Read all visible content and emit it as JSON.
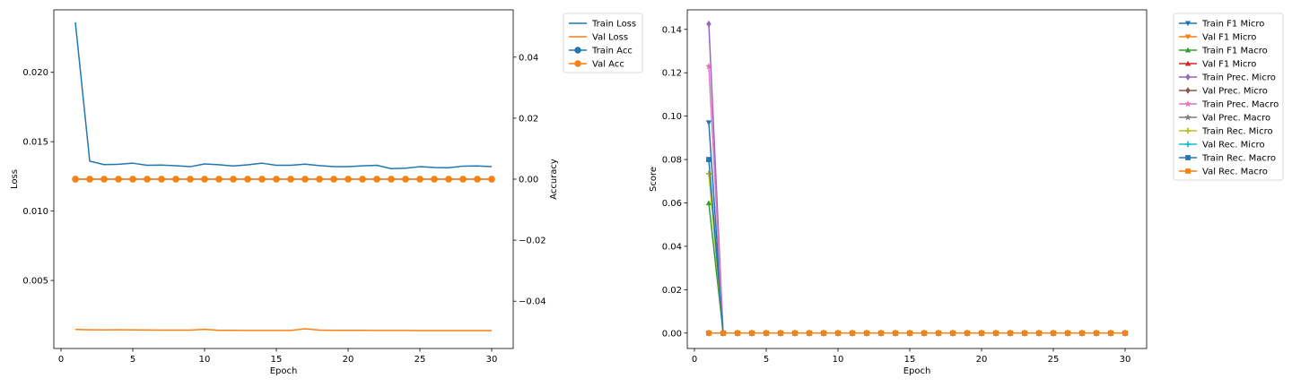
{
  "chart_data": [
    {
      "type": "line",
      "xlabel": "Epoch",
      "ylabel": "Loss",
      "y2label": "Accuracy",
      "xlim": [
        -0.5,
        31.5
      ],
      "ylim": [
        0.0001,
        0.0245
      ],
      "y2lim": [
        -0.0555,
        0.0555
      ],
      "xticks": [
        "0",
        "5",
        "10",
        "15",
        "20",
        "25",
        "30"
      ],
      "xtick_values": [
        0,
        5,
        10,
        15,
        20,
        25,
        30
      ],
      "yticks": [
        "0.005",
        "0.010",
        "0.015",
        "0.020"
      ],
      "ytick_values": [
        0.005,
        0.01,
        0.015,
        0.02
      ],
      "y2ticks": [
        "−0.04",
        "−0.02",
        "0.00",
        "0.02",
        "0.04"
      ],
      "y2tick_values": [
        -0.04,
        -0.02,
        0.0,
        0.02,
        0.04
      ],
      "grid": false,
      "legend_position": "outside-right-top",
      "x": [
        1,
        2,
        3,
        4,
        5,
        6,
        7,
        8,
        9,
        10,
        11,
        12,
        13,
        14,
        15,
        16,
        17,
        18,
        19,
        20,
        21,
        22,
        23,
        24,
        25,
        26,
        27,
        28,
        29,
        30
      ],
      "series": [
        {
          "name": "Train Loss",
          "axis": "left",
          "color": "#1f77b4",
          "marker": "none",
          "values": [
            0.0236,
            0.0136,
            0.01335,
            0.01337,
            0.01345,
            0.0133,
            0.01332,
            0.01327,
            0.0132,
            0.0134,
            0.01334,
            0.01325,
            0.01333,
            0.01345,
            0.0133,
            0.0133,
            0.01338,
            0.01328,
            0.0132,
            0.0132,
            0.01326,
            0.0133,
            0.01306,
            0.01309,
            0.0132,
            0.01314,
            0.01312,
            0.01324,
            0.01325,
            0.0132
          ]
        },
        {
          "name": "Val Loss",
          "axis": "left",
          "color": "#ff7f0e",
          "marker": "none",
          "values": [
            0.00147,
            0.00145,
            0.00144,
            0.00145,
            0.00144,
            0.00143,
            0.00142,
            0.00142,
            0.00142,
            0.00148,
            0.00141,
            0.00141,
            0.0014,
            0.0014,
            0.0014,
            0.0014,
            0.00152,
            0.00142,
            0.00141,
            0.00141,
            0.00141,
            0.0014,
            0.0014,
            0.0014,
            0.00139,
            0.00139,
            0.00139,
            0.00139,
            0.00139,
            0.00139
          ]
        },
        {
          "name": "Train Acc",
          "axis": "right",
          "color": "#1f77b4",
          "marker": "circle",
          "values": [
            0,
            0,
            0,
            0,
            0,
            0,
            0,
            0,
            0,
            0,
            0,
            0,
            0,
            0,
            0,
            0,
            0,
            0,
            0,
            0,
            0,
            0,
            0,
            0,
            0,
            0,
            0,
            0,
            0,
            0
          ]
        },
        {
          "name": "Val Acc",
          "axis": "right",
          "color": "#ff7f0e",
          "marker": "circle",
          "values": [
            0,
            0,
            0,
            0,
            0,
            0,
            0,
            0,
            0,
            0,
            0,
            0,
            0,
            0,
            0,
            0,
            0,
            0,
            0,
            0,
            0,
            0,
            0,
            0,
            0,
            0,
            0,
            0,
            0,
            0
          ]
        }
      ]
    },
    {
      "type": "line",
      "xlabel": "Epoch",
      "ylabel": "Score",
      "xlim": [
        -0.5,
        31.5
      ],
      "ylim": [
        -0.0071,
        0.149
      ],
      "xticks": [
        "0",
        "5",
        "10",
        "15",
        "20",
        "25",
        "30"
      ],
      "xtick_values": [
        0,
        5,
        10,
        15,
        20,
        25,
        30
      ],
      "yticks": [
        "0.00",
        "0.02",
        "0.04",
        "0.06",
        "0.08",
        "0.10",
        "0.12",
        "0.14"
      ],
      "ytick_values": [
        0.0,
        0.02,
        0.04,
        0.06,
        0.08,
        0.1,
        0.12,
        0.14
      ],
      "grid": false,
      "legend_position": "outside-right-top",
      "x": [
        1,
        2,
        3,
        4,
        5,
        6,
        7,
        8,
        9,
        10,
        11,
        12,
        13,
        14,
        15,
        16,
        17,
        18,
        19,
        20,
        21,
        22,
        23,
        24,
        25,
        26,
        27,
        28,
        29,
        30
      ],
      "series": [
        {
          "name": "Train F1 Micro",
          "color": "#1f77b4",
          "marker": "triangle-down",
          "values": [
            0.097,
            0,
            0,
            0,
            0,
            0,
            0,
            0,
            0,
            0,
            0,
            0,
            0,
            0,
            0,
            0,
            0,
            0,
            0,
            0,
            0,
            0,
            0,
            0,
            0,
            0,
            0,
            0,
            0,
            0
          ]
        },
        {
          "name": "Val F1 Micro",
          "color": "#ff7f0e",
          "marker": "triangle-down",
          "values": [
            0,
            0,
            0,
            0,
            0,
            0,
            0,
            0,
            0,
            0,
            0,
            0,
            0,
            0,
            0,
            0,
            0,
            0,
            0,
            0,
            0,
            0,
            0,
            0,
            0,
            0,
            0,
            0,
            0,
            0
          ]
        },
        {
          "name": "Train F1 Macro",
          "color": "#2ca02c",
          "marker": "triangle-up",
          "values": [
            0.06,
            0,
            0,
            0,
            0,
            0,
            0,
            0,
            0,
            0,
            0,
            0,
            0,
            0,
            0,
            0,
            0,
            0,
            0,
            0,
            0,
            0,
            0,
            0,
            0,
            0,
            0,
            0,
            0,
            0
          ]
        },
        {
          "name": "Val F1 Micro",
          "color": "#d62728",
          "marker": "triangle-up",
          "values": [
            0,
            0,
            0,
            0,
            0,
            0,
            0,
            0,
            0,
            0,
            0,
            0,
            0,
            0,
            0,
            0,
            0,
            0,
            0,
            0,
            0,
            0,
            0,
            0,
            0,
            0,
            0,
            0,
            0,
            0
          ]
        },
        {
          "name": "Train Prec. Micro",
          "color": "#9467bd",
          "marker": "diamond",
          "values": [
            0.1425,
            0,
            0,
            0,
            0,
            0,
            0,
            0,
            0,
            0,
            0,
            0,
            0,
            0,
            0,
            0,
            0,
            0,
            0,
            0,
            0,
            0,
            0,
            0,
            0,
            0,
            0,
            0,
            0,
            0
          ]
        },
        {
          "name": "Val Prec. Micro",
          "color": "#8c564b",
          "marker": "diamond",
          "values": [
            0,
            0,
            0,
            0,
            0,
            0,
            0,
            0,
            0,
            0,
            0,
            0,
            0,
            0,
            0,
            0,
            0,
            0,
            0,
            0,
            0,
            0,
            0,
            0,
            0,
            0,
            0,
            0,
            0,
            0
          ]
        },
        {
          "name": "Train Prec. Macro",
          "color": "#e377c2",
          "marker": "star",
          "values": [
            0.123,
            0,
            0,
            0,
            0,
            0,
            0,
            0,
            0,
            0,
            0,
            0,
            0,
            0,
            0,
            0,
            0,
            0,
            0,
            0,
            0,
            0,
            0,
            0,
            0,
            0,
            0,
            0,
            0,
            0
          ]
        },
        {
          "name": "Val Prec. Macro",
          "color": "#7f7f7f",
          "marker": "star",
          "values": [
            0,
            0,
            0,
            0,
            0,
            0,
            0,
            0,
            0,
            0,
            0,
            0,
            0,
            0,
            0,
            0,
            0,
            0,
            0,
            0,
            0,
            0,
            0,
            0,
            0,
            0,
            0,
            0,
            0,
            0
          ]
        },
        {
          "name": "Train Rec. Micro",
          "color": "#bcbd22",
          "marker": "plus",
          "values": [
            0.0735,
            0,
            0,
            0,
            0,
            0,
            0,
            0,
            0,
            0,
            0,
            0,
            0,
            0,
            0,
            0,
            0,
            0,
            0,
            0,
            0,
            0,
            0,
            0,
            0,
            0,
            0,
            0,
            0,
            0
          ]
        },
        {
          "name": "Val Rec. Micro",
          "color": "#17becf",
          "marker": "plus",
          "values": [
            0,
            0,
            0,
            0,
            0,
            0,
            0,
            0,
            0,
            0,
            0,
            0,
            0,
            0,
            0,
            0,
            0,
            0,
            0,
            0,
            0,
            0,
            0,
            0,
            0,
            0,
            0,
            0,
            0,
            0
          ]
        },
        {
          "name": "Train Rec. Macro",
          "color": "#1f77b4",
          "marker": "square",
          "values": [
            0.08,
            0,
            0,
            0,
            0,
            0,
            0,
            0,
            0,
            0,
            0,
            0,
            0,
            0,
            0,
            0,
            0,
            0,
            0,
            0,
            0,
            0,
            0,
            0,
            0,
            0,
            0,
            0,
            0,
            0
          ]
        },
        {
          "name": "Val Rec. Macro",
          "color": "#ff7f0e",
          "marker": "square",
          "values": [
            0,
            0,
            0,
            0,
            0,
            0,
            0,
            0,
            0,
            0,
            0,
            0,
            0,
            0,
            0,
            0,
            0,
            0,
            0,
            0,
            0,
            0,
            0,
            0,
            0,
            0,
            0,
            0,
            0,
            0
          ]
        }
      ]
    }
  ]
}
